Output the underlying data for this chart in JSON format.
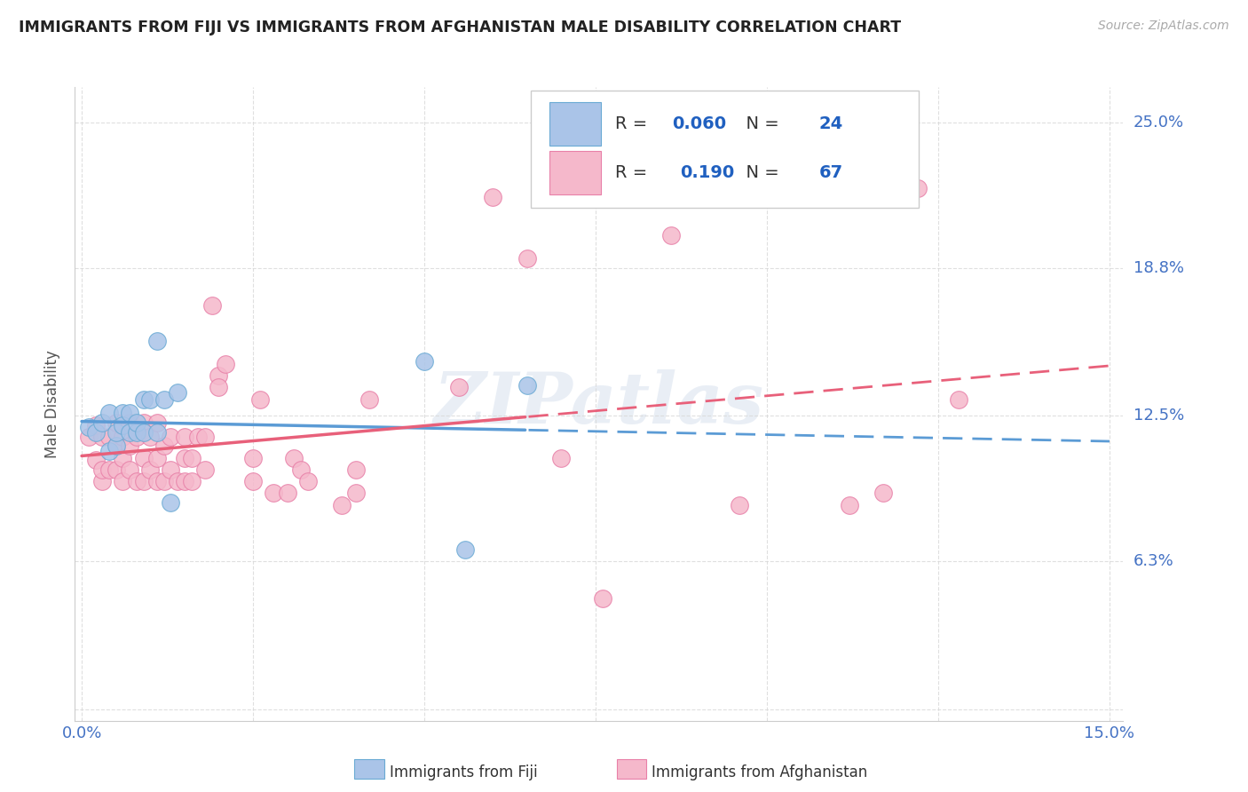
{
  "title": "IMMIGRANTS FROM FIJI VS IMMIGRANTS FROM AFGHANISTAN MALE DISABILITY CORRELATION CHART",
  "source": "Source: ZipAtlas.com",
  "ylabel": "Male Disability",
  "fiji_color": "#aac4e8",
  "fiji_edge_color": "#6aaad4",
  "afghanistan_color": "#f5b8cb",
  "afghanistan_edge_color": "#e880a8",
  "fiji_R": 0.06,
  "fiji_N": 24,
  "afghanistan_R": 0.19,
  "afghanistan_N": 67,
  "fiji_scatter_x": [
    0.001,
    0.002,
    0.003,
    0.004,
    0.004,
    0.005,
    0.005,
    0.006,
    0.006,
    0.007,
    0.007,
    0.008,
    0.008,
    0.009,
    0.009,
    0.01,
    0.011,
    0.011,
    0.012,
    0.013,
    0.014,
    0.05,
    0.056,
    0.065
  ],
  "fiji_scatter_y": [
    0.12,
    0.118,
    0.122,
    0.11,
    0.126,
    0.112,
    0.118,
    0.126,
    0.121,
    0.118,
    0.126,
    0.118,
    0.122,
    0.132,
    0.118,
    0.132,
    0.157,
    0.118,
    0.132,
    0.088,
    0.135,
    0.148,
    0.068,
    0.138
  ],
  "afghanistan_scatter_x": [
    0.001,
    0.002,
    0.002,
    0.003,
    0.003,
    0.003,
    0.004,
    0.004,
    0.005,
    0.005,
    0.005,
    0.006,
    0.006,
    0.006,
    0.007,
    0.007,
    0.007,
    0.008,
    0.008,
    0.009,
    0.009,
    0.009,
    0.01,
    0.01,
    0.011,
    0.011,
    0.011,
    0.012,
    0.012,
    0.013,
    0.013,
    0.014,
    0.015,
    0.015,
    0.015,
    0.016,
    0.016,
    0.017,
    0.018,
    0.018,
    0.019,
    0.02,
    0.02,
    0.021,
    0.025,
    0.025,
    0.026,
    0.028,
    0.03,
    0.031,
    0.032,
    0.033,
    0.038,
    0.04,
    0.04,
    0.042,
    0.055,
    0.06,
    0.065,
    0.07,
    0.076,
    0.086,
    0.096,
    0.112,
    0.117,
    0.122,
    0.128
  ],
  "afghanistan_scatter_y": [
    0.116,
    0.106,
    0.121,
    0.097,
    0.102,
    0.116,
    0.102,
    0.116,
    0.102,
    0.112,
    0.122,
    0.097,
    0.107,
    0.116,
    0.102,
    0.112,
    0.122,
    0.097,
    0.116,
    0.097,
    0.107,
    0.122,
    0.102,
    0.116,
    0.097,
    0.107,
    0.122,
    0.097,
    0.112,
    0.102,
    0.116,
    0.097,
    0.097,
    0.107,
    0.116,
    0.097,
    0.107,
    0.116,
    0.102,
    0.116,
    0.172,
    0.142,
    0.137,
    0.147,
    0.107,
    0.097,
    0.132,
    0.092,
    0.092,
    0.107,
    0.102,
    0.097,
    0.087,
    0.102,
    0.092,
    0.132,
    0.137,
    0.218,
    0.192,
    0.107,
    0.047,
    0.202,
    0.087,
    0.087,
    0.092,
    0.222,
    0.132
  ],
  "trend_color_fiji": "#5b9bd5",
  "trend_color_afghanistan": "#e8607a",
  "watermark": "ZIPatlas",
  "background_color": "#ffffff",
  "grid_color": "#d8d8d8",
  "legend_text_color": "#2060c0",
  "label_color": "#4472c4"
}
